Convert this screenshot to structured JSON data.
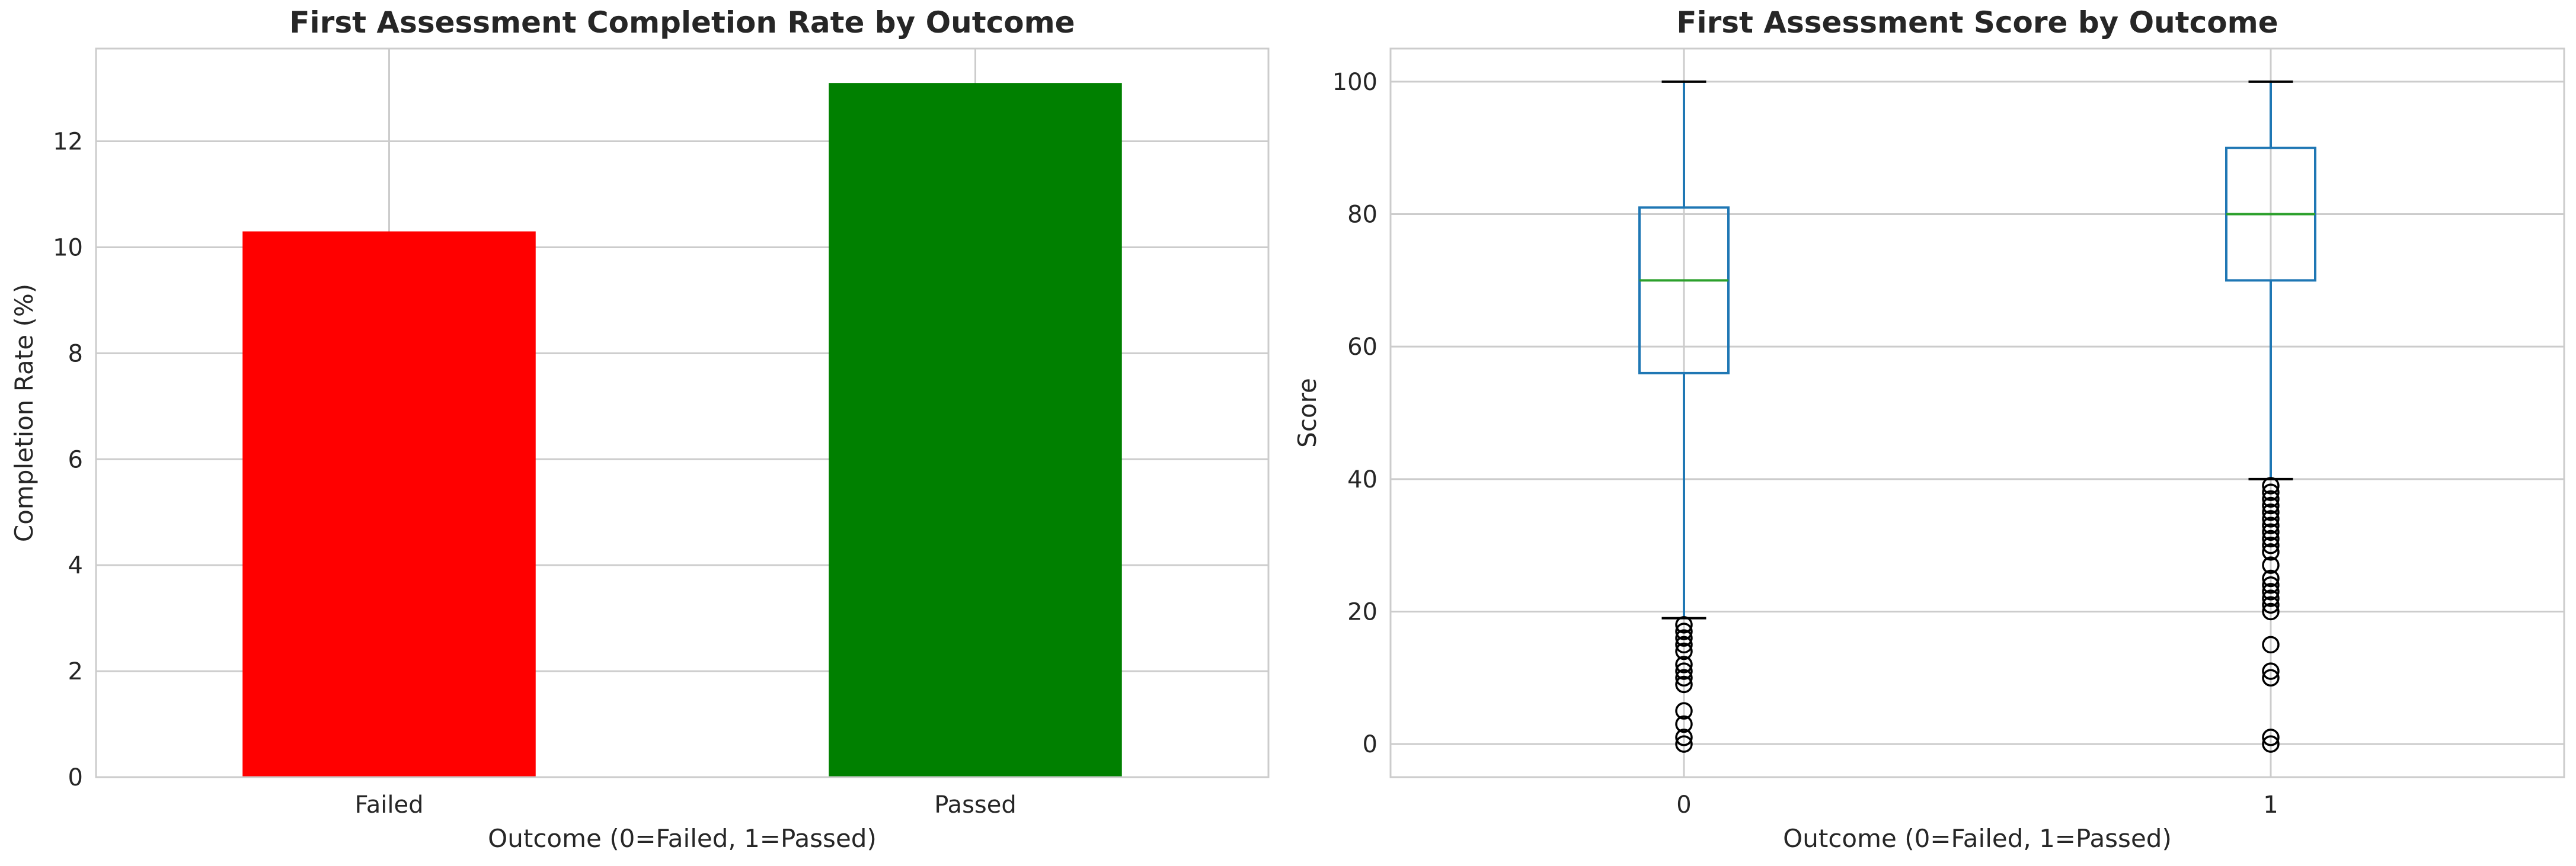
{
  "chart_data": [
    {
      "type": "bar",
      "title": "First Assessment Completion Rate by Outcome",
      "xlabel": "Outcome (0=Failed, 1=Passed)",
      "ylabel": "Completion Rate (%)",
      "categories": [
        "Failed",
        "Passed"
      ],
      "values": [
        10.3,
        13.1
      ],
      "colors": [
        "#ff0000",
        "#008000"
      ],
      "ylim": [
        0,
        13.75
      ],
      "yticks": [
        0,
        2,
        4,
        6,
        8,
        10,
        12
      ],
      "grid": true
    },
    {
      "type": "box",
      "title": "First Assessment Score by Outcome",
      "xlabel": "Outcome (0=Failed, 1=Passed)",
      "ylabel": "Score",
      "categories": [
        "0",
        "1"
      ],
      "ylim": [
        -5,
        105
      ],
      "yticks": [
        0,
        20,
        40,
        60,
        80,
        100
      ],
      "grid": true,
      "box_color": "#1f77b4",
      "median_color": "#2ca02c",
      "boxes": [
        {
          "category": "0",
          "whisker_low": 19,
          "q1": 56,
          "median": 70,
          "q3": 81,
          "whisker_high": 100,
          "outliers": [
            18,
            17,
            16,
            15,
            14,
            12,
            11,
            10,
            9,
            5,
            3,
            1,
            0
          ]
        },
        {
          "category": "1",
          "whisker_low": 40,
          "q1": 70,
          "median": 80,
          "q3": 90,
          "whisker_high": 100,
          "outliers": [
            39,
            38,
            37,
            36,
            35,
            34,
            33,
            32,
            31,
            30,
            29,
            27,
            25,
            24,
            23,
            22,
            21,
            20,
            15,
            11,
            10,
            1,
            0
          ]
        }
      ]
    }
  ]
}
